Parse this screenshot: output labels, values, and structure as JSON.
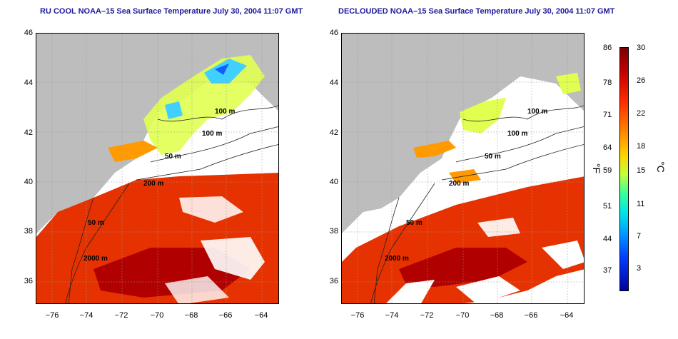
{
  "left_title": "RU COOL NOAA–15 Sea Surface Temperature July 30, 2004 11:07 GMT",
  "right_title": "DECLOUDED NOAA–15 Sea Surface Temperature July 30, 2004 11:07 GMT",
  "y_ticks": [
    "46",
    "44",
    "42",
    "40",
    "38",
    "36"
  ],
  "x_ticks": [
    "−76",
    "−74",
    "−72",
    "−70",
    "−68",
    "−66",
    "−64"
  ],
  "contour_labels": [
    "100 m",
    "100 m",
    "50 m",
    "200 m",
    "50 m",
    "2000 m"
  ],
  "colorbar": {
    "f_ticks": [
      "86",
      "78",
      "71",
      "64",
      "59",
      "51",
      "44",
      "37"
    ],
    "c_ticks": [
      "30",
      "26",
      "22",
      "18",
      "15",
      "11",
      "7",
      "3"
    ],
    "f_unit": "°F",
    "c_unit": "°C"
  },
  "colors": {
    "land": "#bdbdbd",
    "warm": "#e63200",
    "hot": "#b00000",
    "mild": "#ff8c00",
    "cool": "#e0ff50",
    "cold": "#00c0ff",
    "title": "#1a1a9c"
  }
}
